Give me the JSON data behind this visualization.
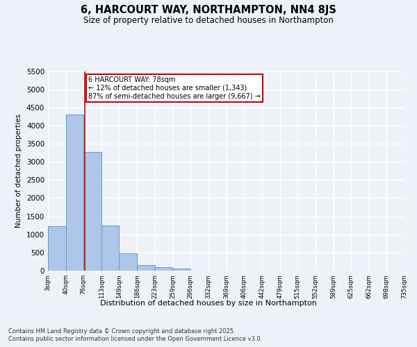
{
  "title_line1": "6, HARCOURT WAY, NORTHAMPTON, NN4 8JS",
  "title_line2": "Size of property relative to detached houses in Northampton",
  "xlabel": "Distribution of detached houses by size in Northampton",
  "ylabel": "Number of detached properties",
  "footer_line1": "Contains HM Land Registry data © Crown copyright and database right 2025.",
  "footer_line2": "Contains public sector information licensed under the Open Government Licence v3.0.",
  "bar_edges": [
    3,
    40,
    76,
    113,
    149,
    186,
    223,
    259,
    296,
    332,
    369,
    406,
    442,
    479,
    515,
    552,
    589,
    625,
    662,
    698,
    735
  ],
  "bar_heights": [
    1220,
    4300,
    3280,
    1240,
    480,
    155,
    95,
    60,
    0,
    0,
    0,
    0,
    0,
    0,
    0,
    0,
    0,
    0,
    0,
    0
  ],
  "bar_color": "#aec6e8",
  "bar_edge_color": "#5b9bd5",
  "property_size": 78,
  "vline_color": "#cc0000",
  "annotation_text": "6 HARCOURT WAY: 78sqm\n← 12% of detached houses are smaller (1,343)\n87% of semi-detached houses are larger (9,667) →",
  "annotation_box_color": "#cc0000",
  "ylim": [
    0,
    5500
  ],
  "yticks": [
    0,
    500,
    1000,
    1500,
    2000,
    2500,
    3000,
    3500,
    4000,
    4500,
    5000,
    5500
  ],
  "background_color": "#eef2f8",
  "plot_bg_color": "#eef2f8",
  "grid_color": "#ffffff"
}
